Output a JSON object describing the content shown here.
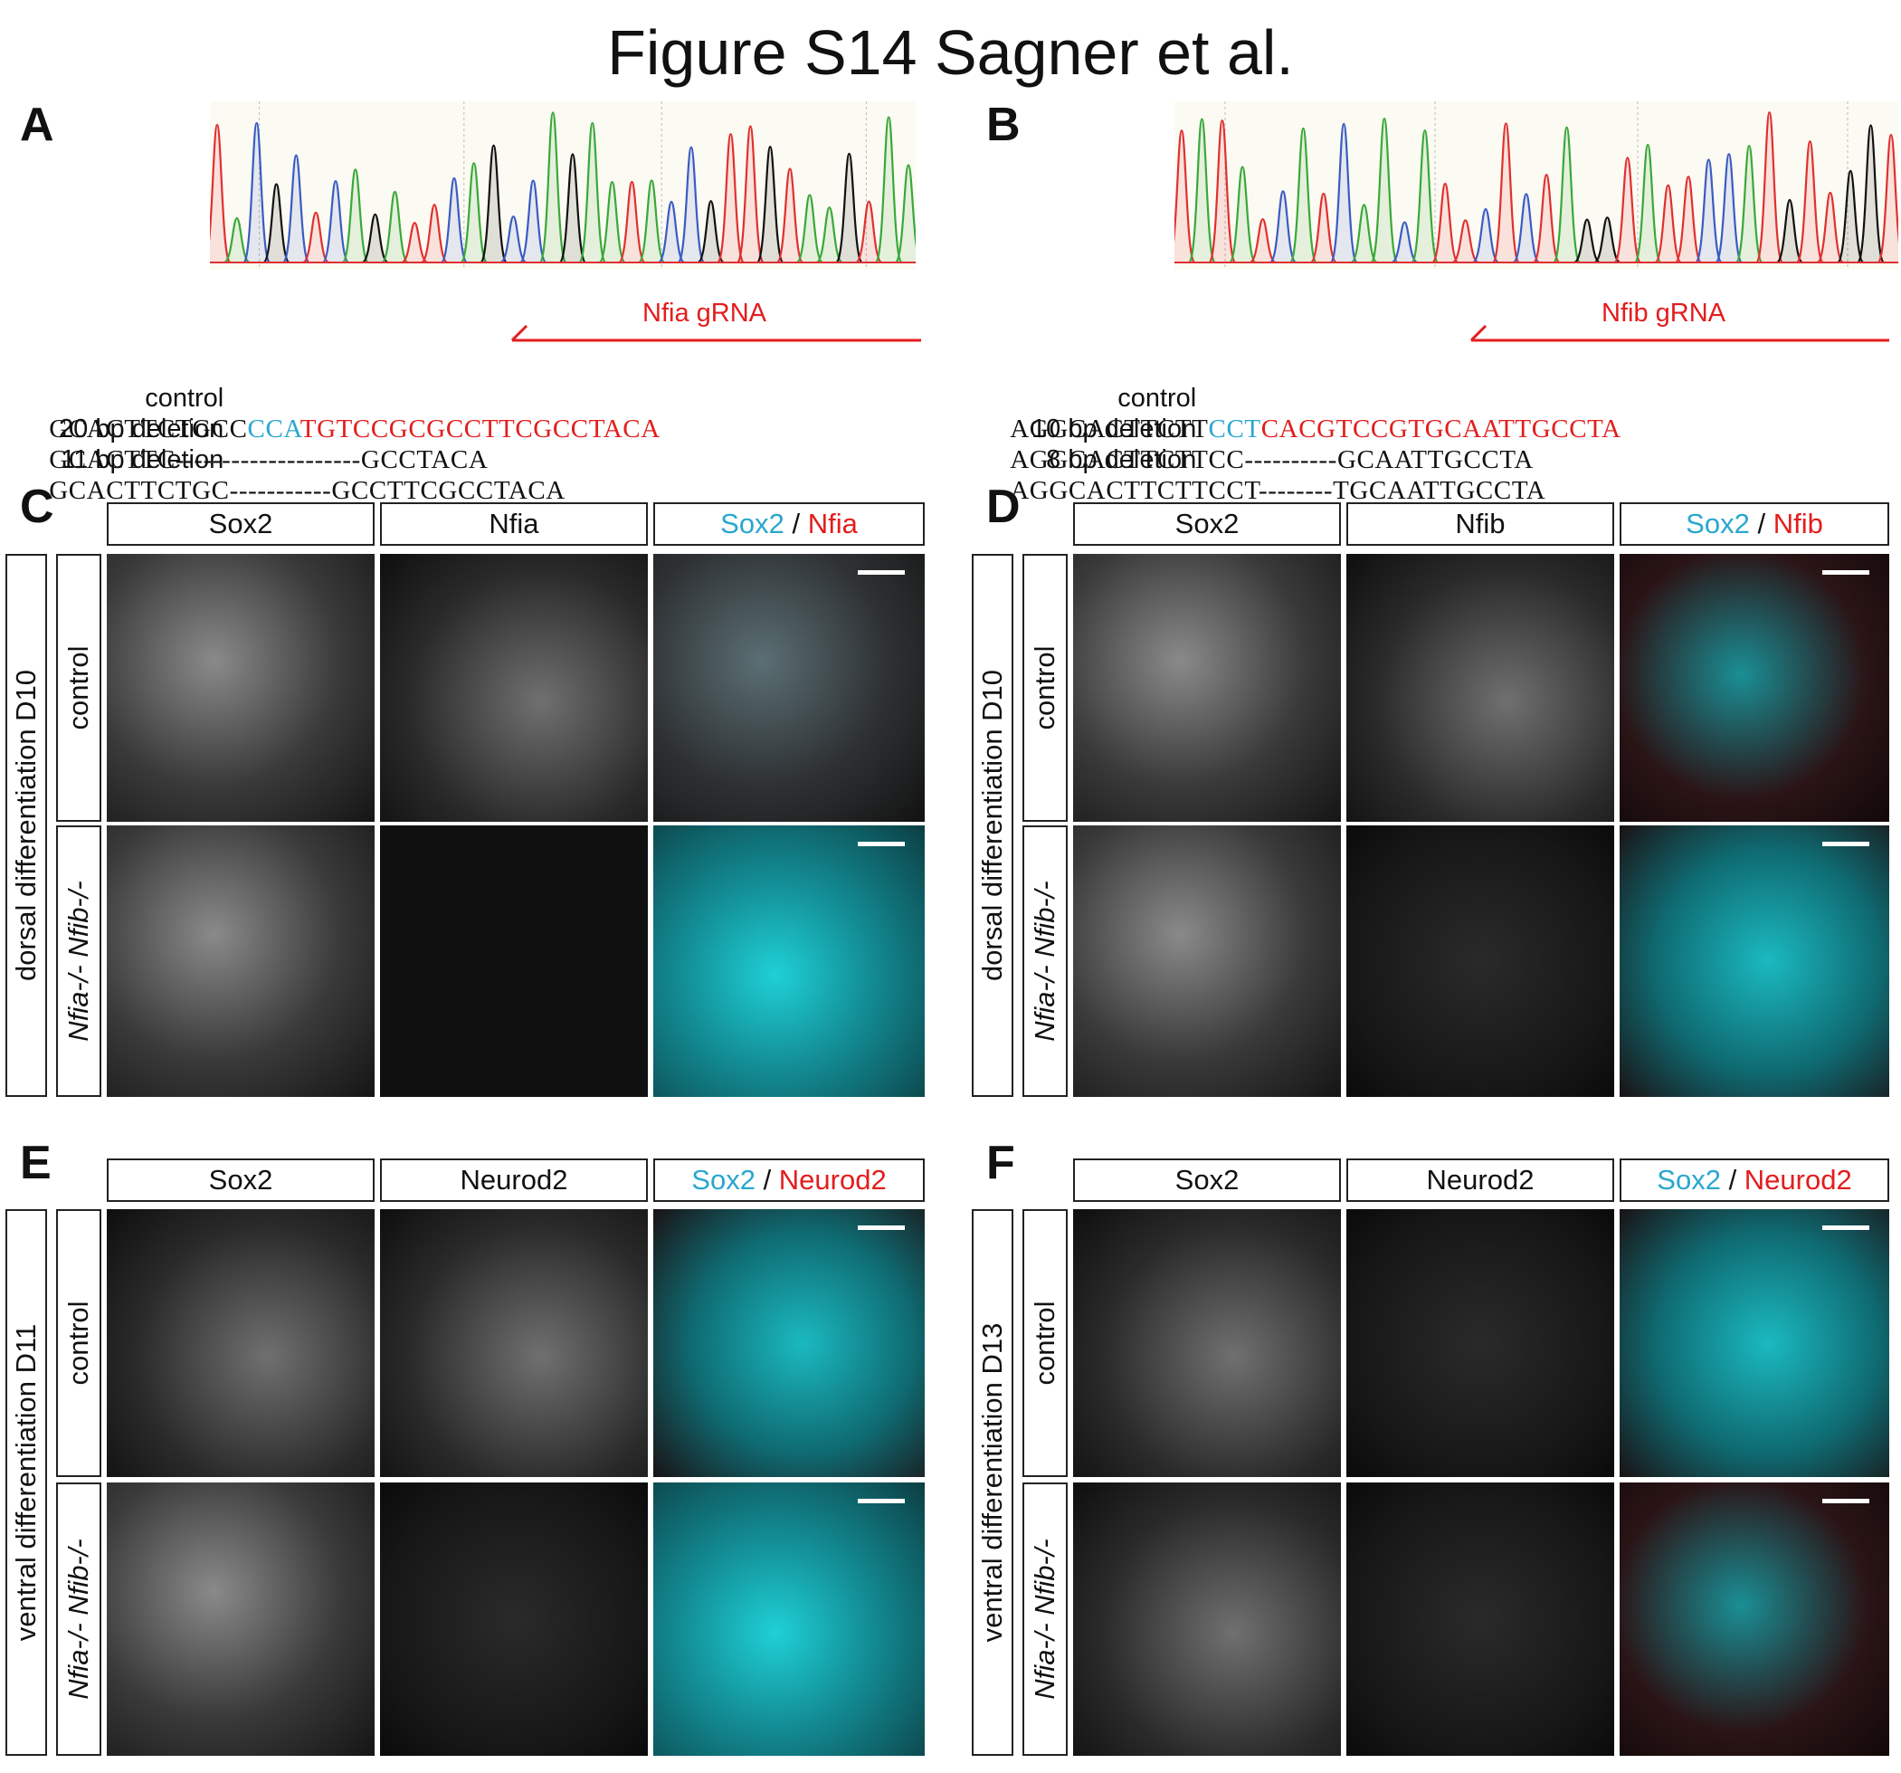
{
  "figure_title": "Figure S14 Sagner et al.",
  "panels": {
    "A": {
      "label": "A",
      "grna_label": "Nfia gRNA",
      "sequences": [
        {
          "name": "control",
          "pre": "GCACTTCTGCC",
          "pam": "CCA",
          "target": "TGTCCGCGCCTTCGCCTACA"
        },
        {
          "name": "20 bp deletion",
          "seq": "GCACTTC--------------------GCCTACA"
        },
        {
          "name": "11 bp deletion",
          "seq": "GCACTTCTGC-----------GCCTTCGCCTACA"
        }
      ]
    },
    "B": {
      "label": "B",
      "grna_label": "Nfib gRNA",
      "sequences": [
        {
          "name": "control",
          "pre": "AGGCACTTCTT",
          "pam": "CCT",
          "target": "CACGTCCGTGCAATTGCCTA"
        },
        {
          "name": "10 bp deletion",
          "seq": "AGGCACTTCTTCC----------GCAATTGCCTA"
        },
        {
          "name": "8 bp deletion",
          "seq": "AGGCACTTCTTCCT--------TGCAATTGCCTA"
        }
      ]
    },
    "C": {
      "label": "C",
      "group_label": "dorsal differentiation D10",
      "columns": [
        "Sox2",
        "Nfia"
      ],
      "merge": {
        "a": "Sox2",
        "sep": " / ",
        "b": "Nfia"
      },
      "rows": [
        "control",
        "Nfia-/- Nfib-/-"
      ]
    },
    "D": {
      "label": "D",
      "group_label": "dorsal differentiation D10",
      "columns": [
        "Sox2",
        "Nfib"
      ],
      "merge": {
        "a": "Sox2",
        "sep": " / ",
        "b": "Nfib"
      },
      "rows": [
        "control",
        "Nfia-/- Nfib-/-"
      ]
    },
    "E": {
      "label": "E",
      "group_label": "ventral differentiation D11",
      "columns": [
        "Sox2",
        "Neurod2"
      ],
      "merge": {
        "a": "Sox2",
        "sep": " / ",
        "b": "Neurod2"
      },
      "rows": [
        "control",
        "Nfia-/- Nfib-/-"
      ]
    },
    "F": {
      "label": "F",
      "group_label": "ventral differentiation D13",
      "columns": [
        "Sox2",
        "Neurod2"
      ],
      "merge": {
        "a": "Sox2",
        "sep": " / ",
        "b": "Neurod2"
      },
      "rows": [
        "control",
        "Nfia-/- Nfib-/-"
      ]
    }
  },
  "colors": {
    "cyan": "#2aa7cf",
    "red": "#e31d1d",
    "trace_blue": "#3b5bc4",
    "trace_green": "#3aa83a",
    "trace_black": "#111111",
    "trace_red": "#e03030"
  }
}
